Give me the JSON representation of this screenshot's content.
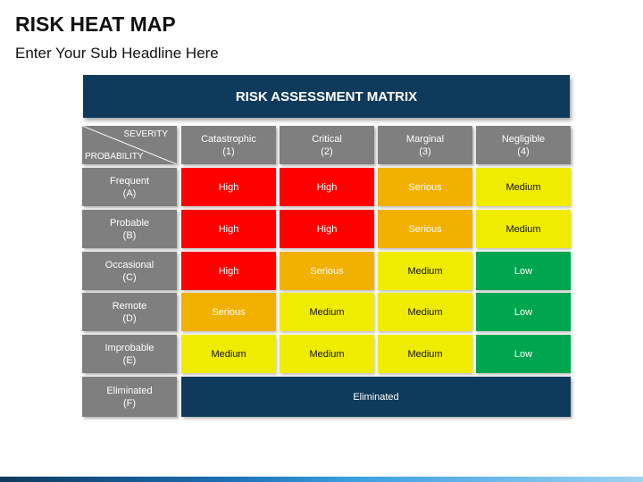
{
  "title": "RISK HEAT MAP",
  "subtitle": "Enter Your Sub Headline Here",
  "matrix": {
    "header": "RISK ASSESSMENT MATRIX",
    "corner": {
      "severity": "SEVERITY",
      "probability": "PROBABILITY"
    },
    "columns": [
      {
        "name": "Catastrophic",
        "num": "(1)"
      },
      {
        "name": "Critical",
        "num": "(2)"
      },
      {
        "name": "Marginal",
        "num": "(3)"
      },
      {
        "name": "Negligible",
        "num": "(4)"
      }
    ],
    "rows": [
      {
        "name": "Frequent",
        "code": "(A)",
        "cells": [
          "High",
          "High",
          "Serious",
          "Medium"
        ]
      },
      {
        "name": "Probable",
        "code": "(B)",
        "cells": [
          "High",
          "High",
          "Serious",
          "Medium"
        ]
      },
      {
        "name": "Occasional",
        "code": "(C)",
        "cells": [
          "High",
          "Serious",
          "Medium",
          "Low"
        ]
      },
      {
        "name": "Remote",
        "code": "(D)",
        "cells": [
          "Serious",
          "Medium",
          "Medium",
          "Low"
        ]
      },
      {
        "name": "Improbable",
        "code": "(E)",
        "cells": [
          "Medium",
          "Medium",
          "Medium",
          "Low"
        ]
      }
    ],
    "eliminated_row": {
      "name": "Eliminated",
      "code": "(F)",
      "label": "Eliminated"
    },
    "level_colors": {
      "High": {
        "bg": "#ff0000",
        "fg": "#ffffff"
      },
      "Serious": {
        "bg": "#f2b000",
        "fg": "#ffffff"
      },
      "Medium": {
        "bg": "#f0ec00",
        "fg": "#111111"
      },
      "Low": {
        "bg": "#00a64f",
        "fg": "#ffffff"
      }
    }
  }
}
